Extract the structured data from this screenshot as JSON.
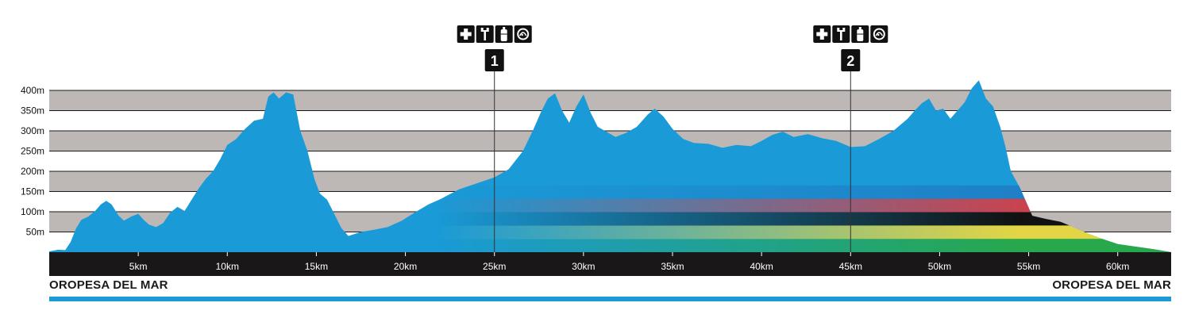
{
  "colors": {
    "profile": "#1a9ad6",
    "band_light": "#bdb8b6",
    "axis_bar": "#1a1718",
    "flag_stripes": [
      "#1f80c8",
      "#c9434f",
      "#111111",
      "#e3d545",
      "#27a84c"
    ]
  },
  "chart_data": {
    "type": "area",
    "title": "",
    "xlabel": "",
    "ylabel": "",
    "x_unit": "km",
    "y_unit": "m",
    "xlim": [
      0,
      63
    ],
    "ylim": [
      0,
      400
    ],
    "y_ticks": [
      50,
      100,
      150,
      200,
      250,
      300,
      350,
      400
    ],
    "y_tick_labels": [
      "50m",
      "100m",
      "150m",
      "200m",
      "250m",
      "300m",
      "350m",
      "400m"
    ],
    "x_ticks": [
      5,
      10,
      15,
      20,
      25,
      30,
      35,
      40,
      45,
      50,
      55,
      60
    ],
    "x_tick_labels": [
      "5km",
      "10km",
      "15km",
      "20km",
      "25km",
      "30km",
      "35km",
      "40km",
      "45km",
      "50km",
      "55km",
      "60km"
    ],
    "grid": true,
    "series": [
      {
        "x": [
          0,
          0.5,
          0.9,
          1.2,
          1.5,
          1.8,
          2.2,
          2.6,
          2.9,
          3.2,
          3.5,
          3.9,
          4.2,
          4.6,
          5.0,
          5.3,
          5.6,
          6.0,
          6.4,
          6.8,
          7.2,
          7.6,
          8.0,
          8.4,
          8.8,
          9.2,
          9.6,
          10.0,
          10.5,
          11.0,
          11.5,
          12.0,
          12.3,
          12.6,
          12.9,
          13.3,
          13.7,
          14.1,
          14.5,
          14.9,
          15.2,
          15.6,
          16.0,
          16.4,
          16.8,
          17.5,
          18.2,
          19.0,
          19.8,
          20.6,
          21.3,
          22.0,
          23.0,
          24.0,
          25.0,
          25.8,
          26.6,
          27.2,
          27.6,
          28.0,
          28.4,
          28.8,
          29.2,
          29.6,
          30.0,
          30.4,
          30.8,
          31.2,
          31.8,
          32.4,
          33.0,
          33.6,
          34.0,
          34.5,
          35.0,
          35.6,
          36.2,
          37.0,
          37.8,
          38.6,
          39.4,
          40.0,
          40.6,
          41.2,
          41.8,
          42.6,
          43.4,
          44.2,
          45.0,
          45.8,
          46.6,
          47.4,
          48.2,
          48.6,
          49.0,
          49.4,
          49.8,
          50.2,
          50.6,
          51.0,
          51.4,
          51.8,
          52.2,
          52.6,
          53.0,
          53.4,
          53.7,
          54.0,
          54.5,
          55.2,
          56.0,
          56.8,
          57.6,
          58.4,
          59.2,
          60.0,
          60.8,
          61.6,
          62.2,
          63.0
        ],
        "y": [
          2,
          6,
          5,
          25,
          58,
          80,
          88,
          103,
          118,
          127,
          118,
          90,
          78,
          88,
          95,
          80,
          68,
          62,
          72,
          98,
          112,
          102,
          130,
          158,
          182,
          200,
          230,
          265,
          280,
          305,
          325,
          330,
          385,
          395,
          380,
          395,
          390,
          300,
          250,
          180,
          145,
          130,
          95,
          60,
          40,
          50,
          55,
          62,
          78,
          100,
          118,
          132,
          155,
          170,
          185,
          205,
          250,
          305,
          345,
          380,
          393,
          350,
          320,
          360,
          390,
          345,
          310,
          300,
          285,
          295,
          310,
          340,
          355,
          335,
          305,
          280,
          270,
          268,
          258,
          265,
          262,
          275,
          290,
          298,
          285,
          292,
          282,
          275,
          260,
          262,
          280,
          300,
          330,
          350,
          368,
          380,
          350,
          355,
          330,
          350,
          370,
          405,
          425,
          380,
          360,
          310,
          260,
          200,
          160,
          90,
          82,
          75,
          60,
          45,
          32,
          20,
          15,
          10,
          6,
          0
        ]
      }
    ],
    "annotations": [
      {
        "label": "1",
        "x": 25.0,
        "icons": [
          "first-aid-icon",
          "wrench-icon",
          "bottle-icon",
          "food-icon"
        ]
      },
      {
        "label": "2",
        "x": 45.0,
        "icons": [
          "first-aid-icon",
          "wrench-icon",
          "bottle-icon",
          "food-icon"
        ]
      }
    ]
  },
  "start_label": "OROPESA DEL MAR",
  "finish_label": "OROPESA DEL MAR"
}
